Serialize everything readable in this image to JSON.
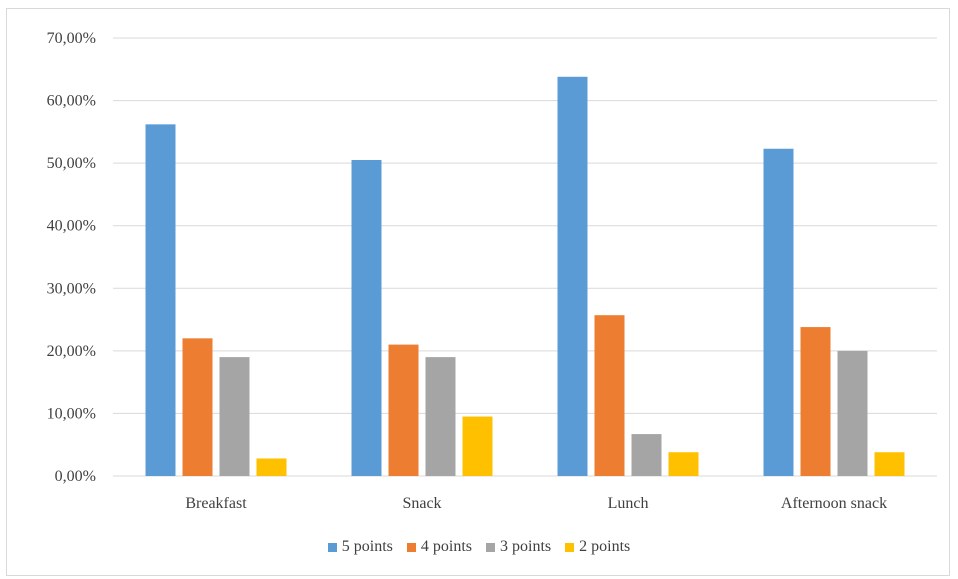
{
  "chart_data": {
    "type": "bar",
    "categories": [
      "Breakfast",
      "Snack",
      "Lunch",
      "Afternoon snack"
    ],
    "series": [
      {
        "name": "5 points",
        "color": "#5b9bd5",
        "values": [
          56.2,
          50.5,
          63.8,
          52.3
        ]
      },
      {
        "name": "4 points",
        "color": "#ed7d31",
        "values": [
          22.0,
          21.0,
          25.7,
          23.8
        ]
      },
      {
        "name": "3 points",
        "color": "#a5a5a5",
        "values": [
          19.0,
          19.0,
          6.7,
          20.0
        ]
      },
      {
        "name": "2 points",
        "color": "#ffc000",
        "values": [
          2.8,
          9.5,
          3.8,
          3.8
        ]
      }
    ],
    "yticks": [
      "0,00%",
      "10,00%",
      "20,00%",
      "30,00%",
      "40,00%",
      "50,00%",
      "60,00%",
      "70,00%"
    ],
    "ylim": [
      0,
      70
    ],
    "grid": true,
    "legend_position": "bottom",
    "title": "",
    "xlabel": "",
    "ylabel": ""
  }
}
